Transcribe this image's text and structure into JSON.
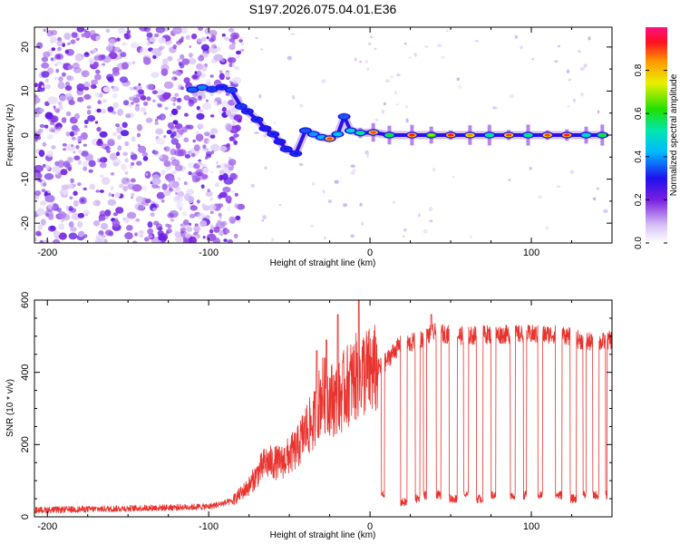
{
  "chart_data": [
    {
      "type": "heatmap",
      "title": "S197.2026.075.04.01.E36",
      "xlabel": "Height of straight line (km)",
      "ylabel": "Frequency (Hz)",
      "xlim": [
        -208,
        150
      ],
      "ylim": [
        -24.5,
        24.5
      ],
      "x_ticks": [
        -200,
        -100,
        0,
        100
      ],
      "y_ticks": [
        20,
        10,
        0,
        -10,
        -20
      ],
      "colorbar": {
        "label": "Normalized spectral amplitude",
        "range": [
          0,
          1
        ],
        "ticks": [
          0.0,
          0.2,
          0.4,
          0.6,
          0.8
        ],
        "tick_labels": [
          "0.0",
          "0.2",
          "0.4",
          "0.6",
          "0.8"
        ]
      },
      "noise_region": {
        "x": [
          -208,
          -86
        ],
        "freq": [
          -24.5,
          24.5
        ],
        "amplitude": 0.12
      },
      "ridge": [
        {
          "x": -110,
          "freq": 10.3,
          "amplitude": 0.35
        },
        {
          "x": -104,
          "freq": 10.8,
          "amplitude": 0.38
        },
        {
          "x": -98,
          "freq": 10.4,
          "amplitude": 0.32
        },
        {
          "x": -92,
          "freq": 10.9,
          "amplitude": 0.3
        },
        {
          "x": -86,
          "freq": 10.2,
          "amplitude": 0.33
        },
        {
          "x": -80,
          "freq": 6.5,
          "amplitude": 0.32
        },
        {
          "x": -76,
          "freq": 5.4,
          "amplitude": 0.3
        },
        {
          "x": -70,
          "freq": 3.5,
          "amplitude": 0.3
        },
        {
          "x": -65,
          "freq": 1.5,
          "amplitude": 0.28
        },
        {
          "x": -60,
          "freq": 0.2,
          "amplitude": 0.3
        },
        {
          "x": -56,
          "freq": -1.5,
          "amplitude": 0.28
        },
        {
          "x": -52,
          "freq": -3.2,
          "amplitude": 0.3
        },
        {
          "x": -46,
          "freq": -4.2,
          "amplitude": 0.3
        },
        {
          "x": -40,
          "freq": 1.0,
          "amplitude": 0.35
        },
        {
          "x": -35,
          "freq": 0.2,
          "amplitude": 0.4
        },
        {
          "x": -30,
          "freq": -0.5,
          "amplitude": 0.42
        },
        {
          "x": -25,
          "freq": -0.8,
          "amplitude": 0.9
        },
        {
          "x": -20,
          "freq": 0.2,
          "amplitude": 0.45
        },
        {
          "x": -16,
          "freq": 4.2,
          "amplitude": 0.35
        },
        {
          "x": -12,
          "freq": 1.0,
          "amplitude": 0.5
        },
        {
          "x": -6,
          "freq": 0.5,
          "amplitude": 0.55
        },
        {
          "x": 2,
          "freq": 0.6,
          "amplitude": 0.9
        },
        {
          "x": 12,
          "freq": 0.0,
          "amplitude": 0.6
        },
        {
          "x": 26,
          "freq": 0.0,
          "amplitude": 0.95
        },
        {
          "x": 38,
          "freq": 0.0,
          "amplitude": 0.7
        },
        {
          "x": 50,
          "freq": 0.0,
          "amplitude": 0.95
        },
        {
          "x": 62,
          "freq": 0.0,
          "amplitude": 0.85
        },
        {
          "x": 74,
          "freq": 0.0,
          "amplitude": 0.55
        },
        {
          "x": 86,
          "freq": 0.0,
          "amplitude": 0.9
        },
        {
          "x": 98,
          "freq": 0.0,
          "amplitude": 0.55
        },
        {
          "x": 110,
          "freq": 0.0,
          "amplitude": 0.9
        },
        {
          "x": 122,
          "freq": 0.0,
          "amplitude": 0.95
        },
        {
          "x": 134,
          "freq": 0.0,
          "amplitude": 0.5
        },
        {
          "x": 144,
          "freq": 0.0,
          "amplitude": 0.6
        }
      ]
    },
    {
      "type": "line",
      "title": "",
      "xlabel": "Height of straight line (km)",
      "ylabel": "SNR (10 * v/v)",
      "xlim": [
        -208,
        150
      ],
      "ylim": [
        0,
        600
      ],
      "x_ticks": [
        -200,
        -100,
        0,
        100
      ],
      "y_ticks": [
        0,
        200,
        400,
        600
      ],
      "series": [
        {
          "name": "SNR",
          "color": "#e8332e",
          "envelope": {
            "x": [
              -208,
              -150,
              -100,
              -85,
              -75,
              -65,
              -55,
              -45,
              -40,
              -35,
              -30,
              -25,
              -20,
              -15,
              -10,
              -5,
              0,
              5,
              10,
              15,
              20,
              25,
              30,
              35,
              40,
              50,
              60,
              70,
              80,
              90,
              100,
              110,
              120,
              130,
              140,
              150
            ],
            "y": [
              20,
              25,
              30,
              45,
              85,
              150,
              150,
              190,
              240,
              260,
              340,
              330,
              320,
              360,
              380,
              400,
              400,
              410,
              430,
              460,
              480,
              480,
              490,
              500,
              510,
              505,
              500,
              505,
              505,
              505,
              505,
              505,
              505,
              490,
              480,
              490
            ]
          },
          "spikes": [
            {
              "x": -7,
              "y": 600
            },
            {
              "x": -20,
              "y": 560
            },
            {
              "x": -27,
              "y": 490
            },
            {
              "x": -33,
              "y": 460
            },
            {
              "x": 38,
              "y": 560
            }
          ],
          "dropouts": [
            {
              "x": [
                7,
                9
              ],
              "y": 60
            },
            {
              "x": [
                19,
                23
              ],
              "y": 40
            },
            {
              "x": [
                28,
                31
              ],
              "y": 50
            },
            {
              "x": [
                33,
                35
              ],
              "y": 60
            },
            {
              "x": [
                41,
                44
              ],
              "y": 60
            },
            {
              "x": [
                49,
                54
              ],
              "y": 50
            },
            {
              "x": [
                58,
                61
              ],
              "y": 60
            },
            {
              "x": [
                66,
                70
              ],
              "y": 50
            },
            {
              "x": [
                75,
                78
              ],
              "y": 60
            },
            {
              "x": [
                87,
                90
              ],
              "y": 60
            },
            {
              "x": [
                95,
                97
              ],
              "y": 60
            },
            {
              "x": [
                104,
                107
              ],
              "y": 60
            },
            {
              "x": [
                115,
                119
              ],
              "y": 60
            },
            {
              "x": [
                124,
                128
              ],
              "y": 50
            },
            {
              "x": [
                132,
                134
              ],
              "y": 60
            },
            {
              "x": [
                138,
                142
              ],
              "y": 60
            },
            {
              "x": [
                146,
                147
              ],
              "y": 60
            }
          ]
        }
      ]
    }
  ]
}
